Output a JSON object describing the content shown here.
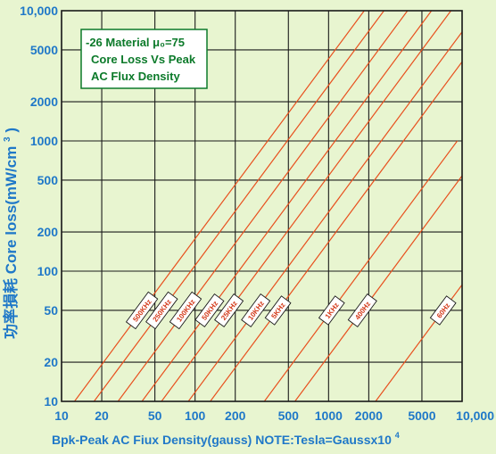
{
  "chart_data": {
    "type": "line",
    "title_lines": [
      "-26 Material μ₀=75",
      "Core Loss Vs Peak",
      "AC Flux Density"
    ],
    "xlabel": "Bpk-Peak AC Fiux Density(gauss) NOTE:Tesla=Gaussx10",
    "xlabel_superscript": "4",
    "ylabel": "Core loss(mW/cm",
    "ylabel_superscript": "3",
    "ylabel_suffix": ")",
    "ylabel_cn": "功率損耗",
    "x_scale": "log",
    "y_scale": "log",
    "xlim": [
      10,
      10000
    ],
    "ylim": [
      10,
      10000
    ],
    "x_ticks": [
      10,
      20,
      50,
      100,
      200,
      500,
      1000,
      2000,
      5000,
      10000
    ],
    "x_tick_labels": [
      "10",
      "20",
      "50",
      "100",
      "200",
      "500",
      "1000",
      "2000",
      "5000",
      "10,000"
    ],
    "y_ticks": [
      10,
      20,
      50,
      100,
      200,
      500,
      1000,
      2000,
      5000,
      10000
    ],
    "y_tick_labels": [
      "10",
      "20",
      "50",
      "100",
      "200",
      "500",
      "1000",
      "2000",
      "5000",
      "10,000"
    ],
    "grid": true,
    "line_color": "#e8501e",
    "label_y_value": 50,
    "series": [
      {
        "name": "500KHz",
        "points": [
          [
            12.5,
            10
          ],
          [
            66,
            100
          ],
          [
            350,
            1000
          ],
          [
            1850,
            10000
          ]
        ]
      },
      {
        "name": "250KHz",
        "points": [
          [
            17.5,
            10
          ],
          [
            93,
            100
          ],
          [
            490,
            1000
          ],
          [
            2600,
            10000
          ]
        ]
      },
      {
        "name": "100KHz",
        "points": [
          [
            26.5,
            10
          ],
          [
            140,
            100
          ],
          [
            740,
            1000
          ],
          [
            3900,
            10000
          ]
        ]
      },
      {
        "name": "50KHz",
        "points": [
          [
            40,
            10
          ],
          [
            212,
            100
          ],
          [
            1120,
            1000
          ],
          [
            5900,
            10000
          ]
        ]
      },
      {
        "name": "25KHz",
        "points": [
          [
            56,
            10
          ],
          [
            296,
            100
          ],
          [
            1560,
            1000
          ],
          [
            8250,
            10000
          ]
        ]
      },
      {
        "name": "10KHz",
        "points": [
          [
            89,
            10
          ],
          [
            470,
            100
          ],
          [
            2480,
            1000
          ],
          [
            13100,
            10000
          ]
        ]
      },
      {
        "name": "5KHz",
        "points": [
          [
            130,
            10
          ],
          [
            690,
            100
          ],
          [
            3640,
            1000
          ],
          [
            19200,
            10000
          ]
        ]
      },
      {
        "name": "1KHz",
        "points": [
          [
            330,
            10
          ],
          [
            1740,
            100
          ],
          [
            9200,
            1000
          ]
        ]
      },
      {
        "name": "400Hz",
        "points": [
          [
            560,
            10
          ],
          [
            2960,
            100
          ],
          [
            15600,
            1000
          ]
        ]
      },
      {
        "name": "60Hz",
        "points": [
          [
            2250,
            10
          ],
          [
            11900,
            100
          ]
        ]
      }
    ]
  }
}
